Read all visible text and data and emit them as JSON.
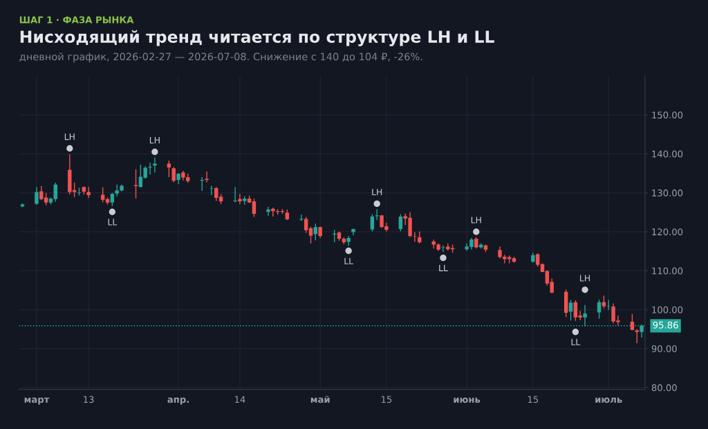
{
  "chart_data": {
    "type": "candlestick",
    "title": "Нисходящий тренд читается по структуре LH и LL",
    "subtitle": "дневной график, 2026-02-27 — 2026-07-08. Снижение с 140 до 104 ₽, -26%.",
    "x": [
      "2026-02-27",
      "2026-03-02",
      "2026-03-03",
      "2026-03-04",
      "2026-03-05",
      "2026-03-06",
      "2026-03-09",
      "2026-03-10",
      "2026-03-11",
      "2026-03-12",
      "2026-03-13",
      "2026-03-16",
      "2026-03-17",
      "2026-03-18",
      "2026-03-19",
      "2026-03-20",
      "2026-03-23",
      "2026-03-24",
      "2026-03-25",
      "2026-03-26",
      "2026-03-27",
      "2026-03-30",
      "2026-03-31",
      "2026-04-01",
      "2026-04-02",
      "2026-04-03",
      "2026-04-06",
      "2026-04-07",
      "2026-04-08",
      "2026-04-09",
      "2026-04-10",
      "2026-04-13",
      "2026-04-14",
      "2026-04-15",
      "2026-04-16",
      "2026-04-17",
      "2026-04-20",
      "2026-04-21",
      "2026-04-22",
      "2026-04-23",
      "2026-04-24",
      "2026-04-27",
      "2026-04-28",
      "2026-04-29",
      "2026-04-30",
      "2026-05-01",
      "2026-05-04",
      "2026-05-05",
      "2026-05-06",
      "2026-05-07",
      "2026-05-08",
      "2026-05-12",
      "2026-05-13",
      "2026-05-14",
      "2026-05-15",
      "2026-05-18",
      "2026-05-19",
      "2026-05-20",
      "2026-05-21",
      "2026-05-22",
      "2026-05-25",
      "2026-05-26",
      "2026-05-27",
      "2026-05-28",
      "2026-05-29",
      "2026-06-01",
      "2026-06-02",
      "2026-06-03",
      "2026-06-04",
      "2026-06-05",
      "2026-06-08",
      "2026-06-09",
      "2026-06-10",
      "2026-06-11",
      "2026-06-15",
      "2026-06-16",
      "2026-06-17",
      "2026-06-18",
      "2026-06-19",
      "2026-06-22",
      "2026-06-23",
      "2026-06-24",
      "2026-06-25",
      "2026-06-26",
      "2026-06-29",
      "2026-06-30",
      "2026-07-01",
      "2026-07-02",
      "2026-07-03",
      "2026-07-06",
      "2026-07-07",
      "2026-07-08"
    ],
    "ohlc": [
      [
        126.5,
        127.3,
        126.3,
        127.0
      ],
      [
        127.2,
        131.5,
        126.9,
        130.2
      ],
      [
        130.4,
        131.7,
        128.1,
        128.4
      ],
      [
        128.8,
        130.0,
        126.8,
        127.5
      ],
      [
        127.5,
        128.8,
        127.0,
        128.5
      ],
      [
        128.4,
        132.6,
        127.7,
        132.1
      ],
      [
        135.9,
        139.9,
        129.6,
        130.2
      ],
      [
        130.7,
        132.6,
        128.9,
        130.2
      ],
      [
        130.0,
        131.3,
        129.3,
        130.1
      ],
      [
        131.5,
        131.6,
        129.6,
        130.3
      ],
      [
        130.2,
        131.5,
        128.7,
        129.4
      ],
      [
        129.5,
        131.4,
        127.6,
        128.2
      ],
      [
        128.4,
        128.8,
        127.0,
        127.5
      ],
      [
        127.5,
        130.0,
        126.6,
        129.7
      ],
      [
        129.8,
        132.1,
        129.1,
        130.6
      ],
      [
        130.6,
        132.1,
        130.4,
        131.8
      ],
      [
        132.0,
        136.0,
        128.5,
        131.7
      ],
      [
        131.5,
        137.2,
        131.4,
        134.1
      ],
      [
        133.9,
        136.8,
        133.6,
        136.4
      ],
      [
        136.5,
        137.7,
        134.7,
        136.7
      ],
      [
        137.0,
        139.1,
        135.2,
        137.5
      ],
      [
        137.5,
        138.3,
        134.0,
        136.5
      ],
      [
        136.3,
        136.6,
        132.7,
        133.1
      ],
      [
        133.3,
        135.0,
        132.2,
        134.9
      ],
      [
        135.2,
        135.6,
        133.2,
        133.9
      ],
      [
        134.0,
        134.9,
        132.6,
        133.0
      ],
      [
        133.1,
        134.0,
        130.5,
        133.3
      ],
      [
        133.6,
        135.5,
        132.7,
        133.3
      ],
      [
        131.0,
        131.8,
        129.4,
        131.1
      ],
      [
        131.2,
        131.5,
        127.9,
        128.7
      ],
      [
        129.0,
        129.7,
        127.1,
        127.8
      ],
      [
        127.8,
        131.5,
        127.6,
        128.0
      ],
      [
        128.4,
        129.7,
        127.1,
        127.8
      ],
      [
        127.9,
        129.1,
        126.9,
        128.5
      ],
      [
        128.5,
        129.3,
        127.4,
        127.5
      ],
      [
        127.8,
        128.5,
        123.8,
        124.6
      ],
      [
        125.1,
        126.4,
        124.1,
        125.7
      ],
      [
        125.9,
        126.2,
        123.9,
        125.3
      ],
      [
        125.3,
        125.8,
        124.4,
        125.1
      ],
      [
        125.3,
        125.8,
        124.6,
        125.1
      ],
      [
        124.9,
        125.7,
        123.0,
        123.2
      ],
      [
        123.1,
        124.4,
        122.8,
        123.3
      ],
      [
        123.3,
        123.8,
        119.7,
        120.4
      ],
      [
        120.9,
        121.3,
        117.0,
        119.0
      ],
      [
        119.4,
        122.1,
        117.8,
        121.2
      ],
      [
        121.2,
        121.3,
        118.4,
        118.9
      ],
      [
        119.3,
        120.5,
        117.3,
        119.5
      ],
      [
        119.8,
        120.1,
        117.7,
        118.2
      ],
      [
        118.2,
        118.6,
        116.8,
        117.3
      ],
      [
        117.4,
        118.9,
        116.4,
        118.4
      ],
      [
        119.9,
        120.8,
        119.1,
        120.7
      ],
      [
        120.6,
        124.5,
        120.1,
        123.9
      ],
      [
        124.0,
        125.8,
        123.0,
        124.2
      ],
      [
        124.2,
        124.3,
        121.0,
        121.2
      ],
      [
        121.4,
        122.3,
        120.1,
        120.5
      ],
      [
        120.7,
        124.5,
        120.1,
        123.9
      ],
      [
        124.0,
        124.7,
        121.7,
        123.4
      ],
      [
        123.6,
        125.0,
        118.6,
        118.9
      ],
      [
        118.9,
        119.9,
        117.4,
        118.8
      ],
      [
        118.6,
        120.1,
        117.0,
        117.3
      ],
      [
        117.5,
        118.0,
        115.7,
        116.7
      ],
      [
        116.7,
        117.0,
        115.1,
        115.4
      ],
      [
        115.9,
        116.5,
        114.8,
        116.0
      ],
      [
        116.2,
        117.0,
        115.2,
        115.5
      ],
      [
        115.8,
        116.7,
        114.6,
        115.5
      ],
      [
        115.5,
        117.0,
        115.1,
        116.2
      ],
      [
        116.1,
        118.4,
        115.4,
        118.0
      ],
      [
        118.2,
        118.6,
        115.7,
        116.0
      ],
      [
        116.0,
        117.0,
        115.7,
        116.7
      ],
      [
        116.5,
        116.7,
        114.8,
        115.4
      ],
      [
        115.3,
        116.2,
        113.2,
        113.5
      ],
      [
        113.6,
        114.1,
        111.9,
        113.0
      ],
      [
        113.5,
        113.9,
        111.9,
        113.0
      ],
      [
        113.2,
        113.6,
        112.1,
        112.3
      ],
      [
        112.3,
        114.6,
        112.1,
        114.0
      ],
      [
        114.2,
        114.5,
        111.0,
        111.5
      ],
      [
        111.7,
        111.9,
        109.6,
        109.7
      ],
      [
        109.9,
        110.1,
        106.2,
        106.7
      ],
      [
        107.1,
        108.0,
        104.2,
        104.4
      ],
      [
        104.6,
        105.2,
        98.1,
        99.2
      ],
      [
        99.5,
        102.5,
        97.2,
        101.8
      ],
      [
        101.9,
        102.4,
        97.1,
        98.0
      ],
      [
        98.5,
        99.7,
        97.3,
        98.0
      ],
      [
        98.0,
        101.2,
        95.7,
        99.0
      ],
      [
        99.3,
        102.6,
        97.7,
        101.9
      ],
      [
        101.9,
        103.6,
        100.3,
        100.9
      ],
      [
        100.8,
        102.5,
        99.9,
        100.9
      ],
      [
        100.8,
        101.6,
        96.5,
        97.0
      ],
      [
        97.2,
        98.5,
        96.0,
        96.8
      ],
      [
        96.9,
        98.9,
        94.7,
        94.8
      ],
      [
        94.7,
        95.0,
        91.4,
        94.3
      ],
      [
        94.3,
        96.2,
        92.8,
        95.86
      ]
    ],
    "colors": [
      "#26a69a",
      "#26a69a",
      "#ef5350",
      "#ef5350",
      "#26a69a",
      "#26a69a",
      "#ef5350",
      "#ef5350",
      "#26a69a",
      "#ef5350",
      "#ef5350",
      "#ef5350",
      "#ef5350",
      "#26a69a",
      "#26a69a",
      "#26a69a",
      "#ef5350",
      "#26a69a",
      "#26a69a",
      "#26a69a",
      "#26a69a",
      "#ef5350",
      "#ef5350",
      "#26a69a",
      "#ef5350",
      "#ef5350",
      "#26a69a",
      "#ef5350",
      "#26a69a",
      "#ef5350",
      "#ef5350",
      "#26a69a",
      "#ef5350",
      "#26a69a",
      "#ef5350",
      "#ef5350",
      "#26a69a",
      "#ef5350",
      "#ef5350",
      "#ef5350",
      "#ef5350",
      "#26a69a",
      "#ef5350",
      "#ef5350",
      "#26a69a",
      "#ef5350",
      "#26a69a",
      "#ef5350",
      "#ef5350",
      "#26a69a",
      "#26a69a",
      "#26a69a",
      "#26a69a",
      "#ef5350",
      "#ef5350",
      "#26a69a",
      "#ef5350",
      "#ef5350",
      "#ef5350",
      "#ef5350",
      "#ef5350",
      "#ef5350",
      "#26a69a",
      "#ef5350",
      "#ef5350",
      "#26a69a",
      "#26a69a",
      "#ef5350",
      "#26a69a",
      "#ef5350",
      "#ef5350",
      "#ef5350",
      "#ef5350",
      "#ef5350",
      "#26a69a",
      "#ef5350",
      "#ef5350",
      "#ef5350",
      "#ef5350",
      "#ef5350",
      "#26a69a",
      "#ef5350",
      "#ef5350",
      "#26a69a",
      "#26a69a",
      "#ef5350",
      "#26a69a",
      "#ef5350",
      "#ef5350",
      "#ef5350",
      "#ef5350",
      "#26a69a"
    ],
    "series": [
      {
        "type": "scatter",
        "color": "#c9ccd3",
        "marker": "circle",
        "x": [
          "2026-03-09",
          "2026-03-18",
          "2026-03-27",
          "2026-05-07",
          "2026-05-13",
          "2026-05-27",
          "2026-06-03",
          "2026-06-24",
          "2026-06-26"
        ],
        "values": [
          141.4,
          125.1,
          140.5,
          115.1,
          127.2,
          113.3,
          120.0,
          94.3,
          105.1
        ]
      }
    ],
    "annotations": [
      "ШАГ 1 · ФАЗА РЫНКА",
      {
        "text": "LH",
        "x": "2026-03-09",
        "y": 141.4
      },
      {
        "text": "LL",
        "x": "2026-03-18",
        "y": 125.1
      },
      {
        "text": "LH",
        "x": "2026-03-27",
        "y": 140.5
      },
      {
        "text": "LL",
        "x": "2026-05-07",
        "y": 115.1
      },
      {
        "text": "LH",
        "x": "2026-05-13",
        "y": 127.2
      },
      {
        "text": "LL",
        "x": "2026-05-27",
        "y": 113.3
      },
      {
        "text": "LH",
        "x": "2026-06-03",
        "y": 120.0
      },
      {
        "text": "LL",
        "x": "2026-06-24",
        "y": 94.3
      },
      {
        "text": "LH",
        "x": "2026-06-26",
        "y": 105.1
      }
    ],
    "ref_lines": [
      {
        "axis": "y",
        "value": 95.86,
        "label": "95.86",
        "color": "#26a69a",
        "line_style": "dotted"
      }
    ],
    "xlim": [
      "2026-02-27",
      "2026-07-08"
    ],
    "xticks": [
      {
        "value": "2026-03-02",
        "label": "март"
      },
      {
        "value": "2026-03-13",
        "label": "13"
      },
      {
        "value": "2026-04-01",
        "label": "апр."
      },
      {
        "value": "2026-04-14",
        "label": "14"
      },
      {
        "value": "2026-05-01",
        "label": "май"
      },
      {
        "value": "2026-05-15",
        "label": "15"
      },
      {
        "value": "2026-06-01",
        "label": "июнь"
      },
      {
        "value": "2026-06-15",
        "label": "15"
      },
      {
        "value": "2026-07-01",
        "label": "июль"
      }
    ],
    "ylim": [
      79.5,
      160
    ],
    "yticks": [
      {
        "value": 80,
        "label": "80.00"
      },
      {
        "value": 90,
        "label": "90.00"
      },
      {
        "value": 100,
        "label": "100.00"
      },
      {
        "value": 110,
        "label": "110.00"
      },
      {
        "value": 120,
        "label": "120.00"
      },
      {
        "value": 130,
        "label": "130.00"
      },
      {
        "value": 140,
        "label": "140.00"
      },
      {
        "value": 150,
        "label": "150.00"
      }
    ],
    "grid": true
  }
}
